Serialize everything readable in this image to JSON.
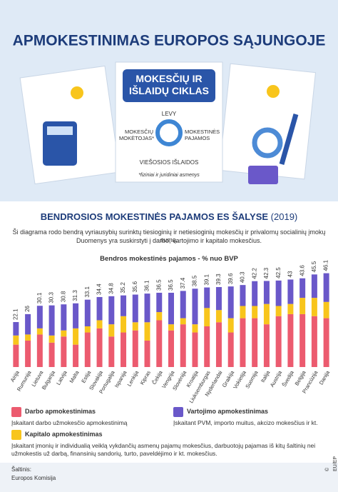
{
  "header": {
    "title": "APMOKESTINIMAS EUROPOS SĄJUNGOJE",
    "card_title": "MOKESČIŲ IR IŠLAIDŲ CIKLAS",
    "cycle": {
      "top": "LEVY",
      "left": "MOKESČIŲ MOKĖTOJAS*",
      "right": "MOKESTINĖS PAJAMOS",
      "bottom": "VIEŠOSIOS IŠLAIDOS"
    },
    "footnote": "*fiziniai ir juridiniai asmenys"
  },
  "chart_data": {
    "type": "stacked-bar",
    "title": "BENDROSIOS MOKESTINĖS PAJAMOS ES ŠALYSE",
    "year": "(2019)",
    "description": [
      "Ši diagrama rodo bendrą vyriausybių surinktų tiesioginių ir netiesioginių mokesčių ir privalomų socialinių įmokų sumą.",
      "Duomenys yra suskirstyti į darbo, vartojimo ir kapitalo mokesčius."
    ],
    "subtitle": "Bendros mokestinės pajamos - % nuo BVP",
    "categories": [
      "Airija",
      "Rumunija",
      "Lietuva",
      "Bulgarija",
      "Latvija",
      "Malta",
      "Estija",
      "Slovakija",
      "Portugalija",
      "Ispanija",
      "Lenkija",
      "Kipras",
      "Čekija",
      "Vengrija",
      "Slovėnija",
      "Kroatija",
      "Liuksemburgas",
      "Nyderlandai",
      "Graikija",
      "Vokietija",
      "Suomija",
      "Italija",
      "Austrija",
      "Švedija",
      "Belgija",
      "Prancūzija",
      "Danija"
    ],
    "totals": [
      22.1,
      26,
      30.1,
      30.3,
      30.8,
      31.3,
      33.1,
      34.4,
      34.8,
      35.2,
      35.6,
      36.1,
      36.5,
      36.5,
      37.4,
      38.5,
      39.1,
      39.3,
      39.6,
      40.3,
      42.2,
      42.3,
      42.5,
      43,
      43.6,
      45.5,
      46.1
    ],
    "series": [
      {
        "name": "Darbo apmokestinimas",
        "description": "Įskaitant darbo užmokesčio apmokestinimą",
        "color": "#ec5b6f",
        "values": [
          11,
          13,
          16,
          12,
          15,
          11,
          17,
          19,
          15,
          17,
          18,
          13,
          23,
          18,
          21,
          17,
          20,
          22,
          17,
          24,
          24,
          21,
          25,
          26,
          26,
          25,
          24
        ]
      },
      {
        "name": "Kapitalo apmokestinimas",
        "description": "Įskaitant įmonių ir individualią veiklą vykdančių asmenų pajamų mokesčius, darbuotojų pajamas iš kitų šaltinių nei užmokestis už darbą, finansinių sandorių, turto, paveldėjimo ir kt. mokesčius.",
        "color": "#f8c51c",
        "values": [
          4.5,
          3,
          3,
          3.5,
          3,
          8,
          3,
          4,
          6,
          8,
          4,
          9,
          4,
          3,
          3,
          4,
          9,
          6,
          7,
          6,
          6,
          10,
          5,
          5,
          8,
          9,
          8
        ]
      },
      {
        "name": "Vartojimo apmokestinimas",
        "description": "Įskaitant PVM, importo muitus, akcizo mokesčius ir kt.",
        "color": "#6a58c9",
        "values": [
          6.6,
          10,
          11.1,
          14.8,
          12.8,
          12.3,
          13.1,
          11.4,
          13.8,
          10.2,
          13.6,
          14.1,
          9.5,
          15.5,
          13.4,
          17.5,
          10.1,
          11.3,
          15.6,
          10.3,
          12.2,
          11.3,
          12.5,
          12,
          9.6,
          11.5,
          14.1
        ]
      }
    ]
  },
  "footer": {
    "source_label": "Šaltinis:",
    "source": "Europos Komisija",
    "copyright": "© EU/EP"
  }
}
